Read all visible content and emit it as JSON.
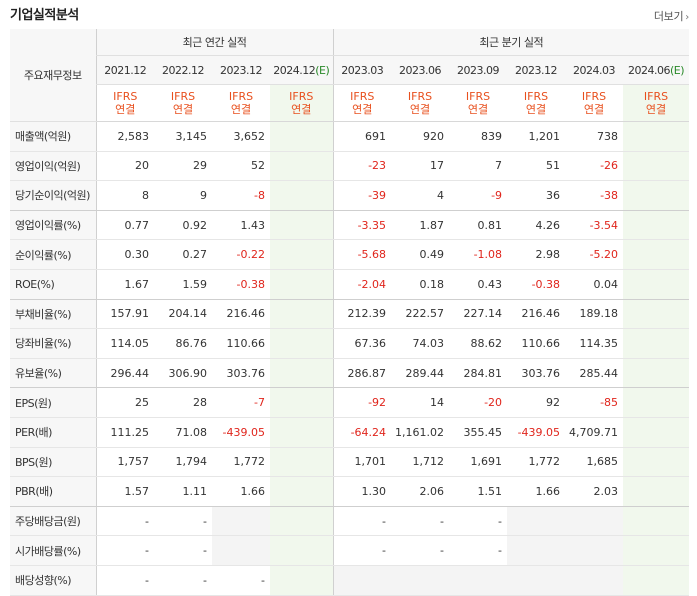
{
  "header": {
    "title": "기업실적분석",
    "more_label": "더보기",
    "more_icon": "chevron-right-icon"
  },
  "table": {
    "row_header_label": "주요재무정보",
    "group_annual": "최근 연간 실적",
    "group_quarter": "최근 분기 실적",
    "annual_periods": [
      "2021.12",
      "2022.12",
      "2023.12",
      "2024.12"
    ],
    "quarter_periods": [
      "2023.03",
      "2023.06",
      "2023.09",
      "2023.12",
      "2024.03",
      "2024.06"
    ],
    "estimate_mark": "(E)",
    "basis_line1": "IFRS",
    "basis_line2": "연결",
    "rows": [
      {
        "label": "매출액(억원)",
        "annual": [
          "2,583",
          "3,145",
          "3,652",
          ""
        ],
        "quarter": [
          "691",
          "920",
          "839",
          "1,201",
          "738",
          ""
        ]
      },
      {
        "label": "영업이익(억원)",
        "annual": [
          "20",
          "29",
          "52",
          ""
        ],
        "quarter": [
          "-23",
          "17",
          "7",
          "51",
          "-26",
          ""
        ]
      },
      {
        "label": "당기순이익(억원)",
        "annual": [
          "8",
          "9",
          "-8",
          ""
        ],
        "quarter": [
          "-39",
          "4",
          "-9",
          "36",
          "-38",
          ""
        ]
      },
      {
        "label": "영업이익률(%)",
        "annual": [
          "0.77",
          "0.92",
          "1.43",
          ""
        ],
        "quarter": [
          "-3.35",
          "1.87",
          "0.81",
          "4.26",
          "-3.54",
          ""
        ]
      },
      {
        "label": "순이익률(%)",
        "annual": [
          "0.30",
          "0.27",
          "-0.22",
          ""
        ],
        "quarter": [
          "-5.68",
          "0.49",
          "-1.08",
          "2.98",
          "-5.20",
          ""
        ]
      },
      {
        "label": "ROE(%)",
        "annual": [
          "1.67",
          "1.59",
          "-0.38",
          ""
        ],
        "quarter": [
          "-2.04",
          "0.18",
          "0.43",
          "-0.38",
          "0.04",
          ""
        ]
      },
      {
        "label": "부채비율(%)",
        "annual": [
          "157.91",
          "204.14",
          "216.46",
          ""
        ],
        "quarter": [
          "212.39",
          "222.57",
          "227.14",
          "216.46",
          "189.18",
          ""
        ]
      },
      {
        "label": "당좌비율(%)",
        "annual": [
          "114.05",
          "86.76",
          "110.66",
          ""
        ],
        "quarter": [
          "67.36",
          "74.03",
          "88.62",
          "110.66",
          "114.35",
          ""
        ]
      },
      {
        "label": "유보율(%)",
        "annual": [
          "296.44",
          "306.90",
          "303.76",
          ""
        ],
        "quarter": [
          "286.87",
          "289.44",
          "284.81",
          "303.76",
          "285.44",
          ""
        ]
      },
      {
        "label": "EPS(원)",
        "annual": [
          "25",
          "28",
          "-7",
          ""
        ],
        "quarter": [
          "-92",
          "14",
          "-20",
          "92",
          "-85",
          ""
        ]
      },
      {
        "label": "PER(배)",
        "annual": [
          "111.25",
          "71.08",
          "-439.05",
          ""
        ],
        "quarter": [
          "-64.24",
          "1,161.02",
          "355.45",
          "-439.05",
          "4,709.71",
          ""
        ]
      },
      {
        "label": "BPS(원)",
        "annual": [
          "1,757",
          "1,794",
          "1,772",
          ""
        ],
        "quarter": [
          "1,701",
          "1,712",
          "1,691",
          "1,772",
          "1,685",
          ""
        ]
      },
      {
        "label": "PBR(배)",
        "annual": [
          "1.57",
          "1.11",
          "1.66",
          ""
        ],
        "quarter": [
          "1.30",
          "2.06",
          "1.51",
          "1.66",
          "2.03",
          ""
        ]
      },
      {
        "label": "주당배당금(원)",
        "annual": [
          "-",
          "-",
          "",
          ""
        ],
        "quarter": [
          "-",
          "-",
          "-",
          "",
          "",
          ""
        ]
      },
      {
        "label": "시가배당률(%)",
        "annual": [
          "-",
          "-",
          "",
          ""
        ],
        "quarter": [
          "-",
          "-",
          "-",
          "",
          "",
          ""
        ]
      },
      {
        "label": "배당성향(%)",
        "annual": [
          "-",
          "-",
          "-",
          ""
        ],
        "quarter": [
          "",
          "",
          "",
          "",
          "",
          ""
        ]
      }
    ]
  },
  "colors": {
    "negative": "#e0251c",
    "ifrs": "#e8501e",
    "estimate_bg": "#f1f8ed",
    "estimate_mark": "#2a8a2a"
  }
}
